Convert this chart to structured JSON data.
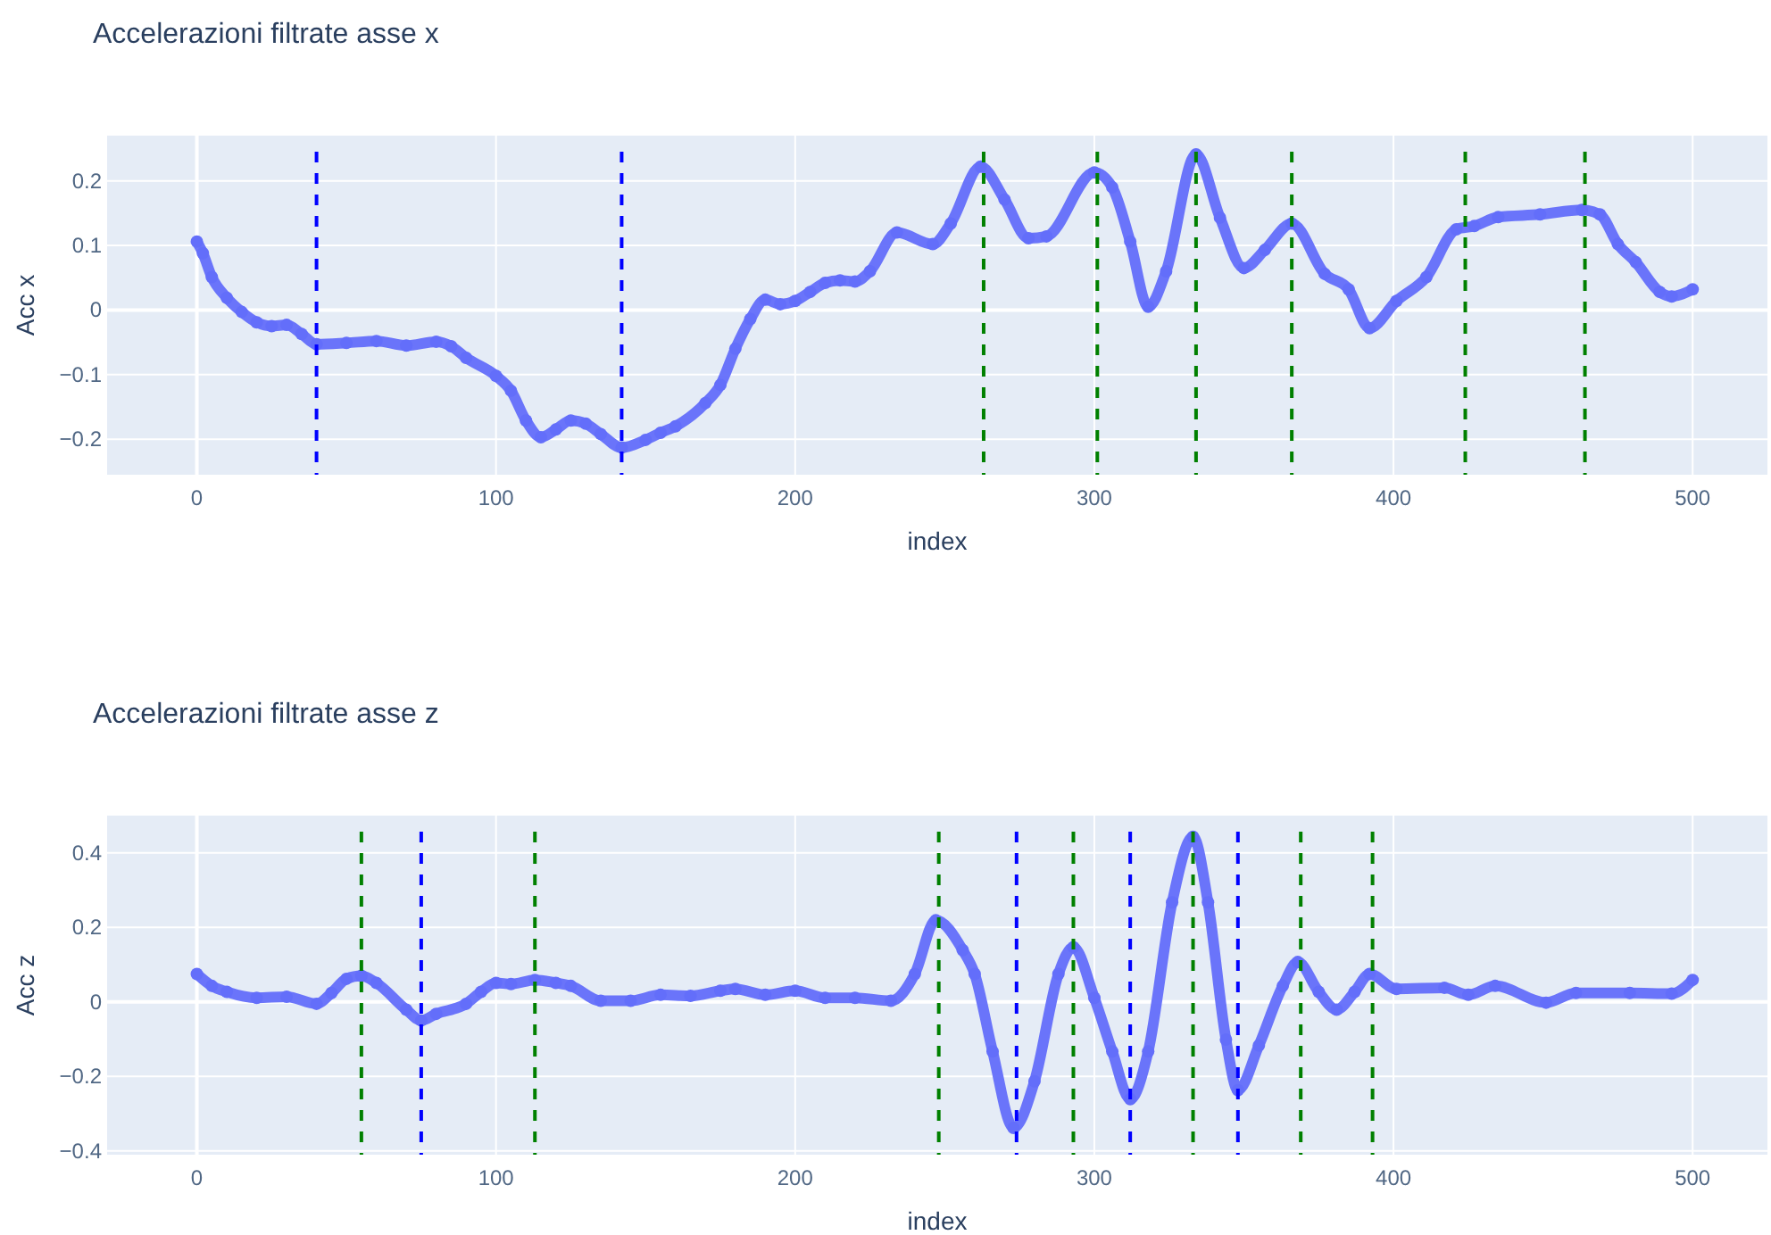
{
  "chart_data": [
    {
      "type": "line",
      "title": "Accelerazioni filtrate asse x",
      "xlabel": "index",
      "ylabel": "Acc x",
      "xlim": [
        -30,
        525
      ],
      "ylim": [
        -0.255,
        0.27
      ],
      "xticks": [
        0,
        100,
        200,
        300,
        400,
        500
      ],
      "yticks": [
        {
          "value": -0.2,
          "label": "−0.2"
        },
        {
          "value": -0.1,
          "label": "−0.1"
        },
        0,
        0.1,
        0.2
      ],
      "grid": true,
      "marker": "circle",
      "line_style": "solid",
      "series": [
        {
          "color": "#636efa",
          "x": [
            0,
            2,
            5,
            10,
            15,
            20,
            25,
            30,
            35,
            40,
            50,
            60,
            70,
            80,
            85,
            90,
            100,
            105,
            110,
            115,
            120,
            125,
            130,
            135,
            142,
            150,
            155,
            160,
            170,
            175,
            180,
            185,
            190,
            195,
            200,
            205,
            210,
            215,
            220,
            225,
            234,
            246,
            252,
            262,
            270,
            278,
            284,
            300,
            306,
            312,
            318,
            324,
            334,
            342,
            350,
            357,
            366,
            377,
            385,
            392,
            401,
            411,
            421,
            427,
            435,
            449,
            463,
            469,
            475,
            481,
            489,
            493,
            500
          ],
          "values": [
            0.106,
            0.088,
            0.051,
            0.019,
            -0.003,
            -0.019,
            -0.025,
            -0.023,
            -0.037,
            -0.053,
            -0.051,
            -0.048,
            -0.055,
            -0.049,
            -0.056,
            -0.074,
            -0.102,
            -0.125,
            -0.171,
            -0.197,
            -0.185,
            -0.171,
            -0.176,
            -0.192,
            -0.213,
            -0.201,
            -0.19,
            -0.18,
            -0.144,
            -0.116,
            -0.06,
            -0.014,
            0.016,
            0.009,
            0.014,
            0.028,
            0.042,
            0.046,
            0.044,
            0.06,
            0.12,
            0.102,
            0.134,
            0.222,
            0.171,
            0.111,
            0.114,
            0.213,
            0.19,
            0.106,
            0.005,
            0.06,
            0.241,
            0.143,
            0.065,
            0.093,
            0.134,
            0.056,
            0.032,
            -0.028,
            0.014,
            0.051,
            0.125,
            0.13,
            0.144,
            0.148,
            0.155,
            0.148,
            0.102,
            0.074,
            0.028,
            0.021,
            0.032
          ]
        }
      ],
      "ref_lines": [
        {
          "axis": "x",
          "value": 40,
          "color": "#0000ff",
          "line_style": "dashed"
        },
        {
          "axis": "x",
          "value": 142,
          "color": "#0000ff",
          "line_style": "dashed"
        },
        {
          "axis": "x",
          "value": 263,
          "color": "#008000",
          "line_style": "dashed"
        },
        {
          "axis": "x",
          "value": 301,
          "color": "#008000",
          "line_style": "dashed"
        },
        {
          "axis": "x",
          "value": 334,
          "color": "#008000",
          "line_style": "dashed"
        },
        {
          "axis": "x",
          "value": 366,
          "color": "#008000",
          "line_style": "dashed"
        },
        {
          "axis": "x",
          "value": 424,
          "color": "#008000",
          "line_style": "dashed"
        },
        {
          "axis": "x",
          "value": 464,
          "color": "#008000",
          "line_style": "dashed"
        }
      ]
    },
    {
      "type": "line",
      "title": "Accelerazioni filtrate asse z",
      "xlabel": "index",
      "ylabel": "Acc z",
      "xlim": [
        -30,
        525
      ],
      "ylim": [
        -0.41,
        0.5
      ],
      "xticks": [
        0,
        100,
        200,
        300,
        400,
        500
      ],
      "yticks": [
        {
          "value": -0.4,
          "label": "−0.4"
        },
        {
          "value": -0.2,
          "label": "−0.2"
        },
        0,
        0.2,
        0.4
      ],
      "grid": true,
      "marker": "circle",
      "line_style": "solid",
      "series": [
        {
          "color": "#636efa",
          "x": [
            0,
            5,
            10,
            20,
            30,
            40,
            45,
            50,
            55,
            60,
            70,
            75,
            80,
            90,
            95,
            100,
            105,
            113,
            120,
            125,
            135,
            145,
            155,
            165,
            175,
            180,
            190,
            200,
            210,
            220,
            232,
            240,
            247,
            256,
            260,
            266,
            273,
            280,
            288,
            293,
            300,
            306,
            312,
            318,
            326,
            333,
            338,
            344,
            348,
            355,
            363,
            368,
            375,
            381,
            387,
            392,
            401,
            417,
            425,
            434,
            451,
            461,
            479,
            493,
            500
          ],
          "values": [
            0.075,
            0.043,
            0.027,
            0.011,
            0.014,
            -0.005,
            0.024,
            0.062,
            0.07,
            0.051,
            -0.021,
            -0.05,
            -0.032,
            -0.005,
            0.027,
            0.051,
            0.048,
            0.059,
            0.051,
            0.043,
            0.003,
            0.003,
            0.019,
            0.016,
            0.03,
            0.035,
            0.019,
            0.03,
            0.011,
            0.011,
            0.003,
            0.075,
            0.219,
            0.139,
            0.075,
            -0.133,
            -0.338,
            -0.213,
            0.075,
            0.147,
            0.011,
            -0.133,
            -0.261,
            -0.133,
            0.267,
            0.443,
            0.267,
            -0.101,
            -0.237,
            -0.117,
            0.043,
            0.107,
            0.027,
            -0.021,
            0.027,
            0.075,
            0.035,
            0.038,
            0.019,
            0.043,
            -0.002,
            0.024,
            0.024,
            0.022,
            0.059
          ]
        }
      ],
      "ref_lines": [
        {
          "axis": "x",
          "value": 55,
          "color": "#008000",
          "line_style": "dashed"
        },
        {
          "axis": "x",
          "value": 75,
          "color": "#0000ff",
          "line_style": "dashed"
        },
        {
          "axis": "x",
          "value": 113,
          "color": "#008000",
          "line_style": "dashed"
        },
        {
          "axis": "x",
          "value": 248,
          "color": "#008000",
          "line_style": "dashed"
        },
        {
          "axis": "x",
          "value": 274,
          "color": "#0000ff",
          "line_style": "dashed"
        },
        {
          "axis": "x",
          "value": 293,
          "color": "#008000",
          "line_style": "dashed"
        },
        {
          "axis": "x",
          "value": 312,
          "color": "#0000ff",
          "line_style": "dashed"
        },
        {
          "axis": "x",
          "value": 333,
          "color": "#008000",
          "line_style": "dashed"
        },
        {
          "axis": "x",
          "value": 348,
          "color": "#0000ff",
          "line_style": "dashed"
        },
        {
          "axis": "x",
          "value": 369,
          "color": "#008000",
          "line_style": "dashed"
        },
        {
          "axis": "x",
          "value": 393,
          "color": "#008000",
          "line_style": "dashed"
        }
      ]
    }
  ]
}
